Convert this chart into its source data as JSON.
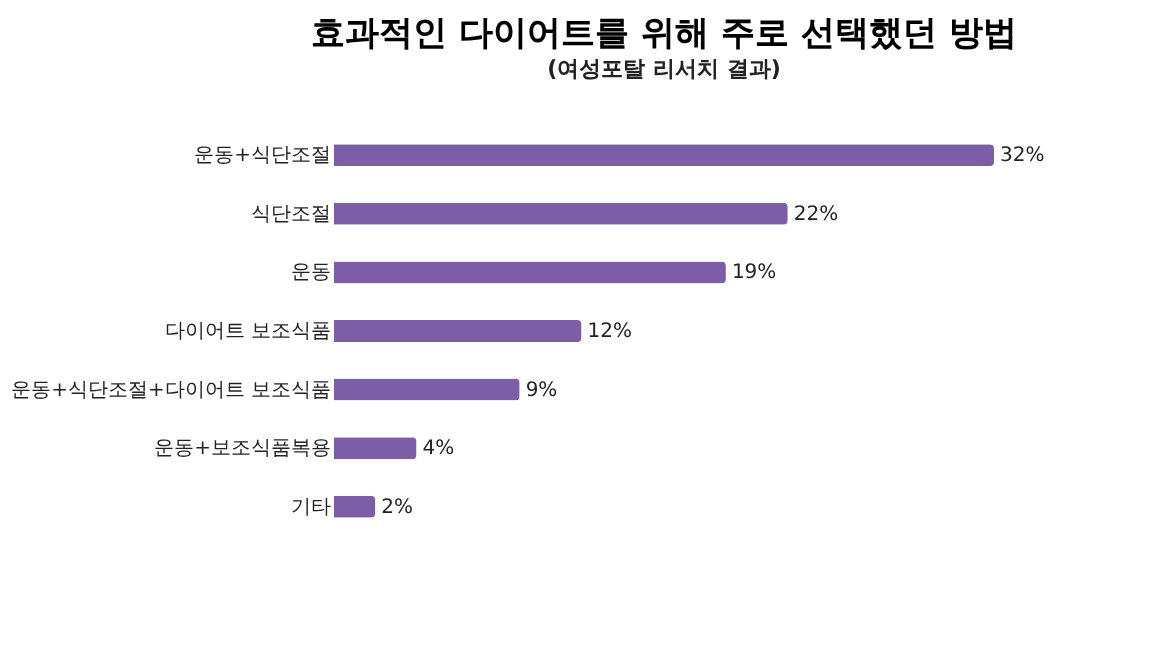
{
  "chart_data": {
    "type": "bar",
    "orientation": "horizontal",
    "title": "효과적인 다이어트를 위해 주로 선택했던 방법",
    "subtitle": "(여성포탈 리서치 결과)",
    "categories": [
      "운동+식단조절",
      "식단조절",
      "운동",
      "다이어트 보조식품",
      "운동+식단조절+다이어트 보조식품",
      "운동+보조식품복용",
      "기타"
    ],
    "values": [
      32,
      22,
      19,
      12,
      9,
      4,
      2
    ],
    "value_labels": [
      "32%",
      "22%",
      "19%",
      "12%",
      "9%",
      "4%",
      "2%"
    ],
    "color": "#7b5ea7",
    "tick_labels": "y"
  }
}
